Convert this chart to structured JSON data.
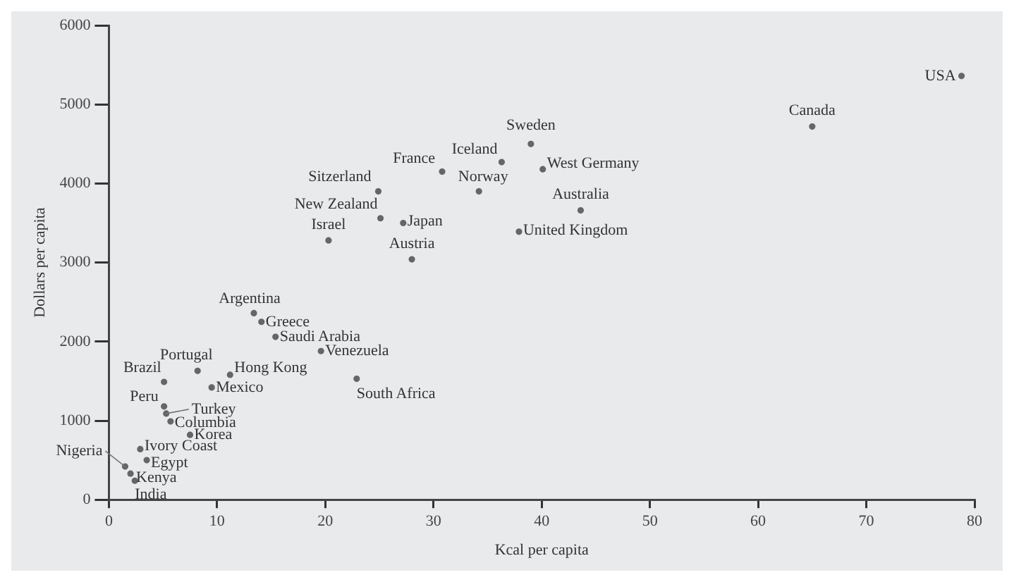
{
  "chart_data": {
    "type": "scatter",
    "xlabel": "Kcal per capita",
    "ylabel": "Dollars per capita",
    "xlim": [
      0,
      80
    ],
    "xticks": [
      0,
      10,
      20,
      30,
      40,
      50,
      60,
      70,
      80
    ],
    "ylim": [
      0,
      6000
    ],
    "yticks": [
      0,
      1000,
      2000,
      3000,
      4000,
      5000,
      6000
    ],
    "grid": false,
    "legend": false,
    "marker": "circle",
    "series": [
      {
        "color": "#666666",
        "x": [
          78.8,
          65,
          39,
          36.3,
          40.1,
          30.8,
          34.2,
          24.9,
          43.6,
          25.1,
          27.2,
          37.9,
          20.3,
          28,
          13.4,
          14.1,
          15.4,
          19.6,
          8.2,
          11.2,
          22.9,
          5.1,
          9.5,
          5.1,
          5.3,
          5.7,
          7.5,
          2.9,
          3.5,
          1.5,
          2,
          2.4
        ],
        "values": [
          5360,
          4720,
          4500,
          4270,
          4180,
          4150,
          3900,
          3900,
          3660,
          3560,
          3500,
          3390,
          3280,
          3040,
          2360,
          2250,
          2060,
          1880,
          1630,
          1580,
          1530,
          1490,
          1420,
          1180,
          1090,
          990,
          820,
          640,
          500,
          420,
          330,
          240
        ]
      }
    ],
    "annotations": [
      {
        "text": "USA",
        "x": 78.8,
        "y": 5360
      },
      {
        "text": "Canada",
        "x": 65,
        "y": 4720
      },
      {
        "text": "Sweden",
        "x": 39,
        "y": 4500
      },
      {
        "text": "Iceland",
        "x": 36.3,
        "y": 4270
      },
      {
        "text": "West Germany",
        "x": 40.1,
        "y": 4180
      },
      {
        "text": "France",
        "x": 30.8,
        "y": 4150
      },
      {
        "text": "Norway",
        "x": 34.2,
        "y": 3900
      },
      {
        "text": "Sitzerland",
        "x": 24.9,
        "y": 3900
      },
      {
        "text": "Australia",
        "x": 43.6,
        "y": 3660
      },
      {
        "text": "New Zealand",
        "x": 25.1,
        "y": 3560
      },
      {
        "text": "Japan",
        "x": 27.2,
        "y": 3500
      },
      {
        "text": "United Kingdom",
        "x": 37.9,
        "y": 3390
      },
      {
        "text": "Israel",
        "x": 20.3,
        "y": 3280
      },
      {
        "text": "Austria",
        "x": 28,
        "y": 3040
      },
      {
        "text": "Argentina",
        "x": 13.4,
        "y": 2360
      },
      {
        "text": "Greece",
        "x": 14.1,
        "y": 2250
      },
      {
        "text": "Saudi Arabia",
        "x": 15.4,
        "y": 2060
      },
      {
        "text": "Venezuela",
        "x": 19.6,
        "y": 1880
      },
      {
        "text": "Portugal",
        "x": 8.2,
        "y": 1630
      },
      {
        "text": "Hong Kong",
        "x": 11.2,
        "y": 1580
      },
      {
        "text": "South Africa",
        "x": 22.9,
        "y": 1530
      },
      {
        "text": "Brazil",
        "x": 5.1,
        "y": 1490
      },
      {
        "text": "Mexico",
        "x": 9.5,
        "y": 1420
      },
      {
        "text": "Peru",
        "x": 5.1,
        "y": 1180
      },
      {
        "text": "Turkey",
        "x": 5.3,
        "y": 1090
      },
      {
        "text": "Columbia",
        "x": 5.7,
        "y": 990
      },
      {
        "text": "Korea",
        "x": 7.5,
        "y": 820
      },
      {
        "text": "Ivory Coast",
        "x": 2.9,
        "y": 640
      },
      {
        "text": "Egypt",
        "x": 3.5,
        "y": 500
      },
      {
        "text": "Nigeria",
        "x": 1.5,
        "y": 420
      },
      {
        "text": "Kenya",
        "x": 2,
        "y": 330
      },
      {
        "text": "India",
        "x": 2.4,
        "y": 240
      }
    ]
  }
}
